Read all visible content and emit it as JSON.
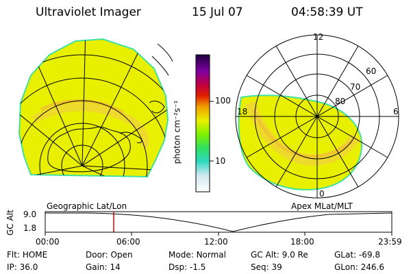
{
  "header": {
    "instrument": "Ultraviolet Imager",
    "date": "15 Jul 07",
    "time": "04:58:39 UT"
  },
  "left_panel": {
    "caption": "Geographic Lat/Lon"
  },
  "right_panel": {
    "caption": "Apex MLat/MLT",
    "mlt_labels": {
      "top": "12",
      "left": "18",
      "right": "6",
      "bottom": "0"
    },
    "lat_labels": [
      "60",
      "70",
      "80"
    ]
  },
  "colorbar": {
    "unit_label": "photon cm⁻²s⁻¹",
    "ticks": [
      "100",
      "10"
    ],
    "scale": "log"
  },
  "altitude_plot": {
    "ylabel": "GC Alt",
    "yticks": [
      "9.0",
      "1.8"
    ],
    "xticks": [
      "00:00",
      "06:00",
      "12:00",
      "18:00",
      "23:59"
    ],
    "current_time_marker": "04:58",
    "marker_color": "#d00000"
  },
  "footer": {
    "row1": [
      {
        "label": "Flt:",
        "value": "HOME"
      },
      {
        "label": "Door:",
        "value": "Open"
      },
      {
        "label": "Mode:",
        "value": "Normal"
      },
      {
        "label": "GC Alt:",
        "value": "9.0 Re"
      },
      {
        "label": "GLat:",
        "value": "-69.8"
      }
    ],
    "row2": [
      {
        "label": "IP:",
        "value": "36.0"
      },
      {
        "label": "Gain:",
        "value": "14"
      },
      {
        "label": "Dsp:",
        "value": "-1.5"
      },
      {
        "label": "Seq:",
        "value": "39"
      },
      {
        "label": "GLon:",
        "value": "246.6"
      }
    ]
  },
  "colors": {
    "auroral_fill": "#e8f000",
    "auroral_bright": "#f0c030",
    "limb": "#40e0a0"
  }
}
